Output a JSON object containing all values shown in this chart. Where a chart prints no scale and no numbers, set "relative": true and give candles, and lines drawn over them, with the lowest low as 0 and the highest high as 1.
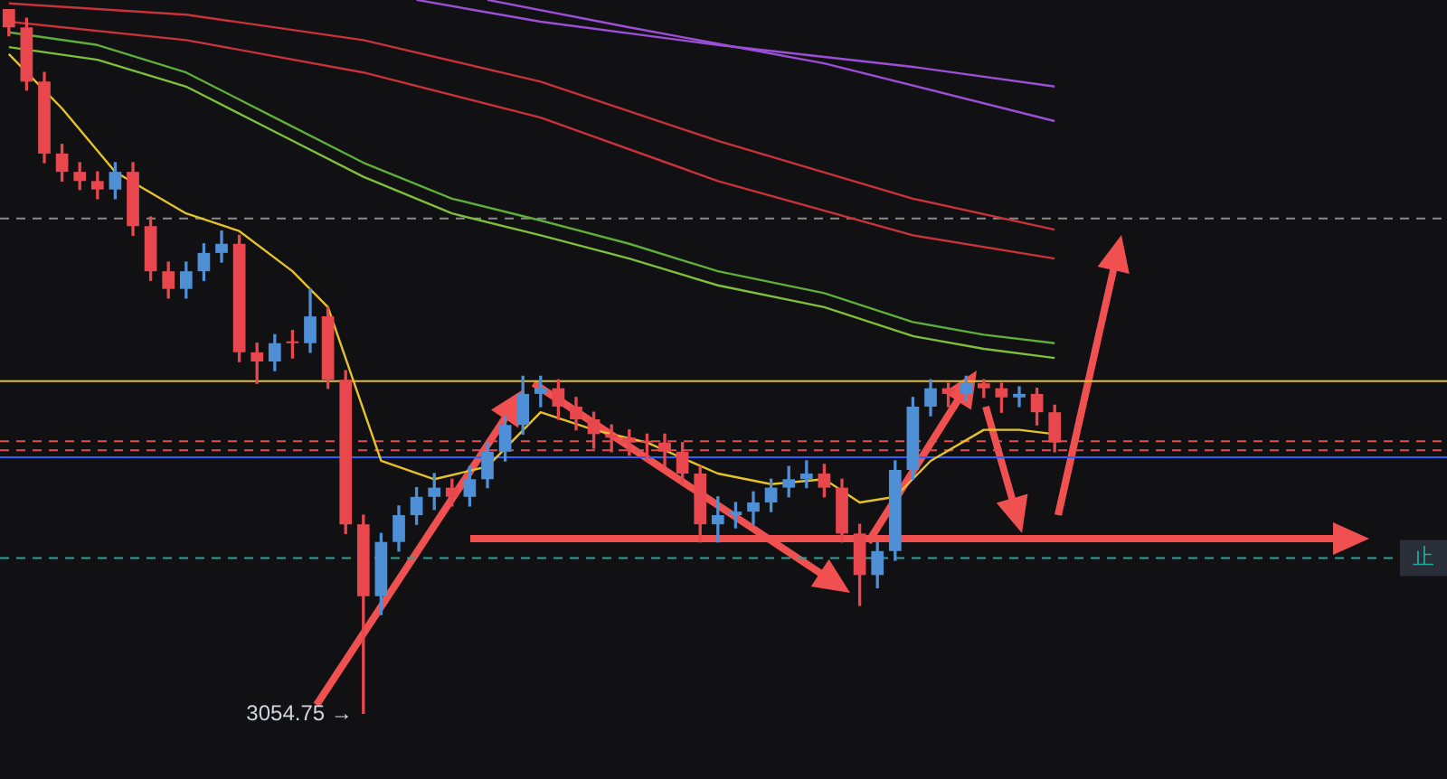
{
  "chart_data": {
    "type": "candlestick",
    "relative": true,
    "categories": [
      null,
      null,
      null,
      null,
      null,
      null,
      null,
      null,
      null,
      null,
      null,
      null,
      null,
      null,
      null,
      null,
      null,
      null,
      null,
      null,
      null,
      null,
      null,
      null,
      null,
      null,
      null,
      null,
      null,
      null,
      null,
      null,
      null,
      null,
      null,
      null,
      null,
      null,
      null,
      null,
      null,
      null,
      null,
      null,
      null,
      null,
      null,
      null,
      null,
      null,
      null,
      null,
      null,
      null,
      null,
      null,
      null,
      null,
      null,
      null
    ],
    "ohlc": [
      [
        1.0,
        1.0,
        0.962,
        0.974
      ],
      [
        0.974,
        0.987,
        0.885,
        0.897
      ],
      [
        0.897,
        0.91,
        0.782,
        0.795
      ],
      [
        0.795,
        0.808,
        0.756,
        0.769
      ],
      [
        0.769,
        0.782,
        0.744,
        0.756
      ],
      [
        0.756,
        0.769,
        0.731,
        0.744
      ],
      [
        0.744,
        0.782,
        0.731,
        0.769
      ],
      [
        0.769,
        0.782,
        0.679,
        0.692
      ],
      [
        0.692,
        0.705,
        0.615,
        0.628
      ],
      [
        0.628,
        0.641,
        0.59,
        0.603
      ],
      [
        0.603,
        0.641,
        0.59,
        0.628
      ],
      [
        0.628,
        0.667,
        0.615,
        0.654
      ],
      [
        0.654,
        0.685,
        0.641,
        0.667
      ],
      [
        0.667,
        0.679,
        0.5,
        0.513
      ],
      [
        0.513,
        0.526,
        0.469,
        0.5
      ],
      [
        0.5,
        0.538,
        0.487,
        0.526
      ],
      [
        0.526,
        0.544,
        0.505,
        0.526
      ],
      [
        0.526,
        0.603,
        0.513,
        0.564
      ],
      [
        0.564,
        0.577,
        0.462,
        0.474
      ],
      [
        0.474,
        0.487,
        0.256,
        0.269
      ],
      [
        0.269,
        0.282,
        0.0,
        0.167
      ],
      [
        0.167,
        0.256,
        0.141,
        0.244
      ],
      [
        0.244,
        0.295,
        0.231,
        0.282
      ],
      [
        0.282,
        0.321,
        0.269,
        0.308
      ],
      [
        0.308,
        0.341,
        0.29,
        0.321
      ],
      [
        0.321,
        0.333,
        0.295,
        0.308
      ],
      [
        0.308,
        0.351,
        0.295,
        0.333
      ],
      [
        0.333,
        0.385,
        0.321,
        0.372
      ],
      [
        0.372,
        0.423,
        0.359,
        0.41
      ],
      [
        0.41,
        0.479,
        0.397,
        0.454
      ],
      [
        0.454,
        0.479,
        0.436,
        0.462
      ],
      [
        0.462,
        0.474,
        0.418,
        0.436
      ],
      [
        0.436,
        0.449,
        0.403,
        0.418
      ],
      [
        0.418,
        0.428,
        0.377,
        0.397
      ],
      [
        0.397,
        0.41,
        0.372,
        0.392
      ],
      [
        0.392,
        0.403,
        0.367,
        0.385
      ],
      [
        0.385,
        0.397,
        0.359,
        0.385
      ],
      [
        0.385,
        0.397,
        0.351,
        0.372
      ],
      [
        0.372,
        0.385,
        0.326,
        0.341
      ],
      [
        0.341,
        0.351,
        0.244,
        0.269
      ],
      [
        0.269,
        0.308,
        0.244,
        0.282
      ],
      [
        0.282,
        0.3,
        0.264,
        0.287
      ],
      [
        0.287,
        0.315,
        0.269,
        0.3
      ],
      [
        0.3,
        0.333,
        0.287,
        0.321
      ],
      [
        0.321,
        0.351,
        0.308,
        0.333
      ],
      [
        0.333,
        0.359,
        0.321,
        0.341
      ],
      [
        0.341,
        0.354,
        0.308,
        0.321
      ],
      [
        0.321,
        0.333,
        0.244,
        0.256
      ],
      [
        0.256,
        0.269,
        0.154,
        0.197
      ],
      [
        0.197,
        0.244,
        0.179,
        0.231
      ],
      [
        0.231,
        0.359,
        0.218,
        0.346
      ],
      [
        0.346,
        0.449,
        0.333,
        0.436
      ],
      [
        0.436,
        0.474,
        0.423,
        0.462
      ],
      [
        0.462,
        0.469,
        0.436,
        0.454
      ],
      [
        0.454,
        0.479,
        0.444,
        0.469
      ],
      [
        0.469,
        0.474,
        0.449,
        0.462
      ],
      [
        0.462,
        0.469,
        0.428,
        0.449
      ],
      [
        0.449,
        0.464,
        0.436,
        0.454
      ],
      [
        0.454,
        0.462,
        0.41,
        0.428
      ],
      [
        0.428,
        0.438,
        0.372,
        0.385
      ]
    ],
    "colors": [
      "#e8474d",
      "#e8474d",
      "#e8474d",
      "#e8474d",
      "#e8474d",
      "#e8474d",
      "#4f8fd6",
      "#e8474d",
      "#e8474d",
      "#e8474d",
      "#4f8fd6",
      "#4f8fd6",
      "#4f8fd6",
      "#e8474d",
      "#e8474d",
      "#4f8fd6",
      "#e8474d",
      "#4f8fd6",
      "#e8474d",
      "#e8474d",
      "#e8474d",
      "#4f8fd6",
      "#4f8fd6",
      "#4f8fd6",
      "#4f8fd6",
      "#e8474d",
      "#4f8fd6",
      "#4f8fd6",
      "#4f8fd6",
      "#4f8fd6",
      "#4f8fd6",
      "#e8474d",
      "#e8474d",
      "#e8474d",
      "#e8474d",
      "#e8474d",
      "#e8474d",
      "#e8474d",
      "#e8474d",
      "#e8474d",
      "#4f8fd6",
      "#4f8fd6",
      "#4f8fd6",
      "#4f8fd6",
      "#4f8fd6",
      "#4f8fd6",
      "#e8474d",
      "#e8474d",
      "#e8474d",
      "#4f8fd6",
      "#4f8fd6",
      "#4f8fd6",
      "#4f8fd6",
      "#e8474d",
      "#4f8fd6",
      "#e8474d",
      "#e8474d",
      "#4f8fd6",
      "#e8474d",
      "#e8474d"
    ],
    "series": [
      {
        "type": "line",
        "color": "#9c4fd6",
        "values": [
          null,
          null,
          null,
          null,
          null,
          null,
          null,
          null,
          null,
          null,
          null,
          null,
          null,
          null,
          null,
          null,
          null,
          null,
          null,
          null,
          null,
          null,
          null,
          1.013,
          null,
          null,
          null,
          null,
          null,
          null,
          0.982,
          null,
          null,
          null,
          null,
          null,
          null,
          null,
          null,
          null,
          0.949,
          null,
          null,
          null,
          null,
          null,
          null,
          null,
          null,
          null,
          null,
          0.918,
          null,
          null,
          null,
          null,
          null,
          null,
          null,
          0.89
        ]
      },
      {
        "type": "line",
        "color": "#9c4fd6",
        "values": [
          null,
          null,
          null,
          null,
          null,
          null,
          null,
          null,
          null,
          null,
          null,
          null,
          null,
          null,
          null,
          null,
          null,
          null,
          null,
          null,
          null,
          null,
          null,
          null,
          null,
          null,
          null,
          1.013,
          null,
          null,
          null,
          null,
          null,
          null,
          null,
          0.974,
          null,
          null,
          null,
          null,
          null,
          null,
          null,
          null,
          null,
          null,
          0.923,
          null,
          null,
          null,
          null,
          null,
          null,
          null,
          null,
          null,
          null,
          null,
          null,
          0.841
        ]
      },
      {
        "type": "line",
        "color": "#c8323a",
        "values": [
          1.008,
          null,
          null,
          null,
          null,
          null,
          null,
          null,
          null,
          null,
          0.992,
          null,
          null,
          null,
          null,
          null,
          null,
          null,
          null,
          null,
          0.956,
          null,
          null,
          null,
          null,
          null,
          null,
          null,
          null,
          null,
          0.897,
          null,
          null,
          null,
          null,
          null,
          null,
          null,
          null,
          null,
          0.813,
          null,
          null,
          null,
          null,
          null,
          null,
          null,
          null,
          null,
          null,
          0.731,
          null,
          null,
          null,
          null,
          null,
          null,
          null,
          0.687
        ]
      },
      {
        "type": "line",
        "color": "#c8323a",
        "values": [
          0.982,
          null,
          null,
          null,
          null,
          null,
          null,
          null,
          null,
          null,
          0.956,
          null,
          null,
          null,
          null,
          null,
          null,
          null,
          null,
          null,
          0.91,
          null,
          null,
          null,
          null,
          null,
          null,
          null,
          null,
          null,
          0.846,
          null,
          null,
          null,
          null,
          null,
          null,
          null,
          null,
          null,
          0.756,
          null,
          null,
          null,
          null,
          null,
          null,
          null,
          null,
          null,
          null,
          0.679,
          null,
          null,
          null,
          null,
          null,
          null,
          null,
          0.646
        ]
      },
      {
        "type": "line",
        "color": "#5fae3a",
        "values": [
          0.967,
          null,
          null,
          null,
          null,
          0.949,
          null,
          null,
          null,
          null,
          0.91,
          null,
          null,
          null,
          null,
          0.846,
          null,
          null,
          null,
          null,
          0.782,
          null,
          null,
          null,
          null,
          0.731,
          null,
          null,
          null,
          null,
          0.7,
          null,
          null,
          null,
          null,
          0.667,
          null,
          null,
          null,
          null,
          0.628,
          null,
          null,
          null,
          null,
          null,
          0.597,
          null,
          null,
          null,
          null,
          0.556,
          null,
          null,
          null,
          0.538,
          null,
          null,
          null,
          0.526
        ]
      },
      {
        "type": "line",
        "color": "#7fbf3a",
        "values": [
          0.946,
          null,
          null,
          null,
          null,
          0.928,
          null,
          null,
          null,
          null,
          0.89,
          null,
          null,
          null,
          null,
          0.826,
          null,
          null,
          null,
          null,
          0.762,
          null,
          null,
          null,
          null,
          0.71,
          null,
          null,
          null,
          null,
          0.679,
          null,
          null,
          null,
          null,
          0.646,
          null,
          null,
          null,
          null,
          0.608,
          null,
          null,
          null,
          null,
          null,
          0.577,
          null,
          null,
          null,
          null,
          0.536,
          null,
          null,
          null,
          0.518,
          null,
          null,
          null,
          0.505
        ]
      },
      {
        "type": "line",
        "color": "#e6c229",
        "values": [
          0.936,
          null,
          null,
          0.859,
          null,
          null,
          0.769,
          null,
          null,
          null,
          0.71,
          null,
          null,
          0.685,
          null,
          null,
          0.628,
          null,
          0.577,
          null,
          null,
          0.359,
          null,
          null,
          0.333,
          null,
          null,
          0.351,
          null,
          null,
          0.428,
          null,
          null,
          0.403,
          null,
          null,
          0.385,
          null,
          null,
          null,
          0.341,
          null,
          null,
          0.326,
          null,
          null,
          0.333,
          null,
          0.3,
          null,
          0.308,
          null,
          0.359,
          null,
          null,
          0.403,
          null,
          0.403,
          null,
          0.397
        ]
      }
    ],
    "ref_lines": [
      {
        "axis": "y",
        "value": 0.703,
        "color": "#8a8a8a",
        "line_style": "dashed"
      },
      {
        "axis": "y",
        "value": 0.472,
        "color": "#e6c229",
        "line_style": "solid"
      },
      {
        "axis": "y",
        "value": 0.387,
        "color": "#e05050",
        "line_style": "dashed"
      },
      {
        "axis": "y",
        "value": 0.374,
        "color": "#e05050",
        "line_style": "dashed"
      },
      {
        "axis": "y",
        "value": 0.364,
        "color": "#2962ff",
        "line_style": "solid"
      },
      {
        "axis": "y",
        "value": 0.221,
        "color": "#26a69a",
        "line_style": "dashed",
        "label": "止"
      }
    ],
    "annotations": [
      "3054.75 →"
    ],
    "legend": false
  }
}
